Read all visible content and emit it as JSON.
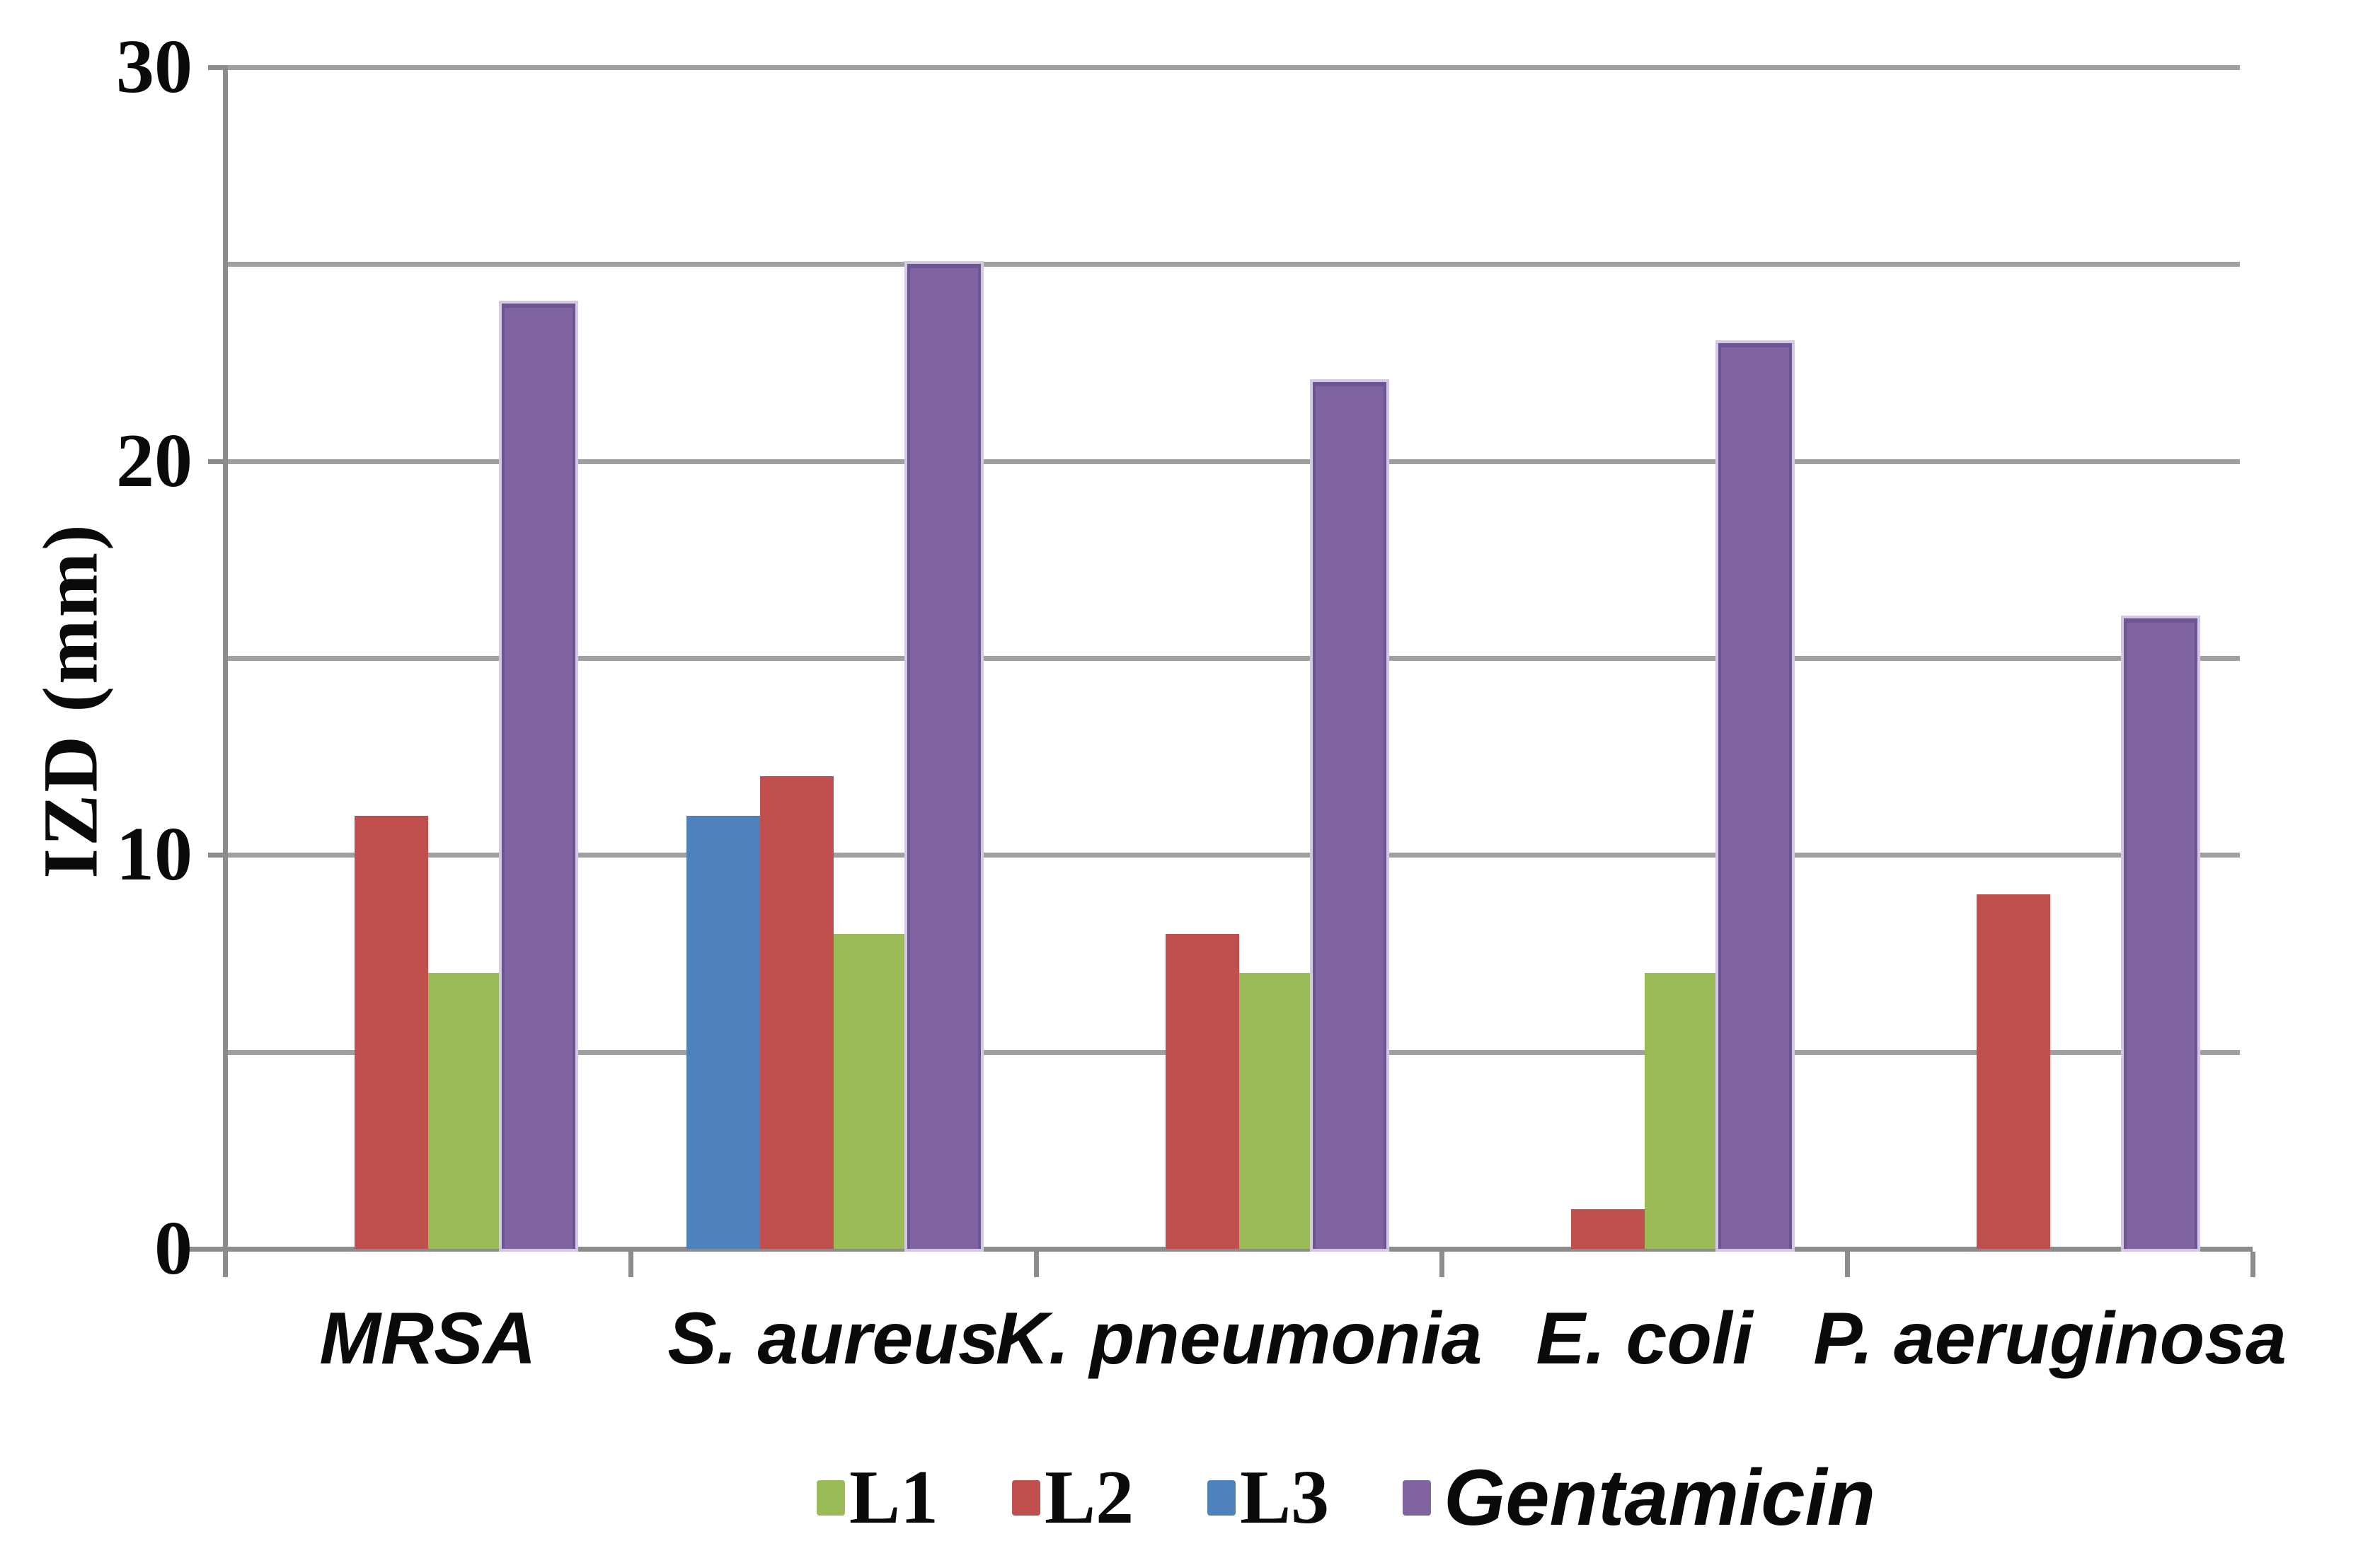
{
  "page": {
    "background": "#ffffff"
  },
  "chart_data": {
    "type": "bar",
    "title": "",
    "ylabel": "IZD (mm)",
    "xlabel": "",
    "ylim": [
      0,
      30
    ],
    "ytick_values": [
      0,
      10,
      20,
      30
    ],
    "ytick_labels": [
      "0",
      "10",
      "20",
      "30"
    ],
    "gridline_step": 5,
    "grid": true,
    "legend_position": "bottom",
    "categories": [
      "MRSA",
      "S. aureus",
      "K. pneumonia",
      "E. coli",
      "P. aeruginosa"
    ],
    "series": [
      {
        "name": "L1",
        "color": "#9bbb59",
        "values": [
          7,
          8,
          7,
          7,
          0
        ]
      },
      {
        "name": "L2",
        "color": "#c0504d",
        "values": [
          11,
          12,
          8,
          1,
          9
        ]
      },
      {
        "name": "L3",
        "color": "#4f81bd",
        "values": [
          0,
          11,
          0,
          0,
          0
        ]
      },
      {
        "name": "Gentamicin",
        "color": "#8064a2",
        "values": [
          24,
          25,
          22,
          23,
          16
        ],
        "italic_legend": true,
        "beveled_edge": true
      }
    ],
    "bar_draw_order": [
      "L3",
      "L2",
      "L1",
      "Gentamicin"
    ]
  },
  "colors": {
    "gridline": "#a0a0a0",
    "axis": "#8c8c8c",
    "text": "#0a0a0a"
  }
}
